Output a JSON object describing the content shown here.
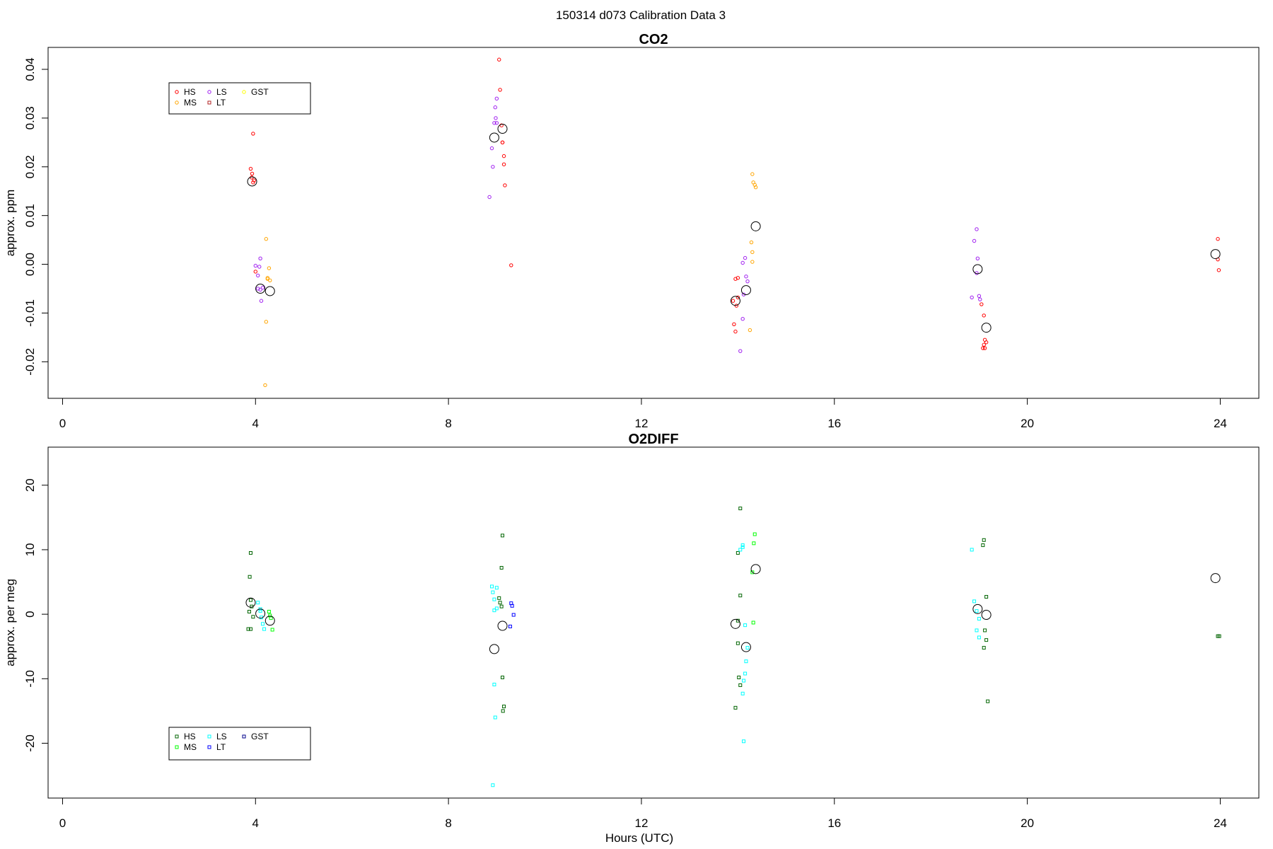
{
  "main_title": "150314   d073   Calibration Data 3",
  "chart_data": [
    {
      "type": "scatter",
      "title": "CO2",
      "ylabel": "approx. ppm",
      "xlabel": "",
      "xlim": [
        -0.3,
        24.8
      ],
      "ylim": [
        -0.0275,
        0.0445
      ],
      "x_ticks": [
        0,
        4,
        8,
        12,
        16,
        20,
        24
      ],
      "y_ticks": [
        -0.02,
        -0.01,
        0.0,
        0.01,
        0.02,
        0.03,
        0.04
      ],
      "y_tick_labels": [
        "-0.02",
        "-0.01",
        "0.00",
        "0.01",
        "0.02",
        "0.03",
        "0.04"
      ],
      "legend_position": "top-left",
      "legend": [
        {
          "name": "HS",
          "color": "#ff0000",
          "symbol": "circle"
        },
        {
          "name": "MS",
          "color": "#ffa500",
          "symbol": "circle"
        },
        {
          "name": "LS",
          "color": "#a020f0",
          "symbol": "circle"
        },
        {
          "name": "LT",
          "color": "#b22222",
          "symbol": "square"
        },
        {
          "name": "GST",
          "color": "#ffff00",
          "symbol": "circle"
        }
      ],
      "series": [
        {
          "name": "HS",
          "color": "#ff0000",
          "points": [
            [
              3.9,
              0.0196
            ],
            [
              3.93,
              0.0186
            ],
            [
              3.95,
              0.0268
            ],
            [
              3.92,
              0.0178
            ],
            [
              3.97,
              0.0172
            ],
            [
              3.95,
              0.0168
            ],
            [
              4.0,
              -0.0015
            ],
            [
              9.05,
              0.042
            ],
            [
              9.07,
              0.0358
            ],
            [
              9.1,
              0.0285
            ],
            [
              9.12,
              0.025
            ],
            [
              9.15,
              0.0222
            ],
            [
              9.15,
              0.0205
            ],
            [
              9.17,
              0.0162
            ],
            [
              9.12,
              0.025
            ],
            [
              9.3,
              -0.0002
            ],
            [
              13.9,
              -0.0075
            ],
            [
              13.92,
              -0.0123
            ],
            [
              13.95,
              -0.0138
            ],
            [
              13.97,
              -0.0085
            ],
            [
              14.0,
              -0.0068
            ],
            [
              14.0,
              -0.0028
            ],
            [
              13.95,
              -0.003
            ],
            [
              19.05,
              -0.0082
            ],
            [
              19.1,
              -0.0105
            ],
            [
              19.12,
              -0.0155
            ],
            [
              19.1,
              -0.0165
            ],
            [
              19.15,
              -0.016
            ],
            [
              19.08,
              -0.0172
            ],
            [
              19.12,
              -0.0172
            ],
            [
              23.95,
              0.0052
            ],
            [
              23.95,
              0.001
            ],
            [
              23.97,
              -0.0012
            ]
          ]
        },
        {
          "name": "MS",
          "color": "#ffa500",
          "points": [
            [
              4.22,
              0.0052
            ],
            [
              4.25,
              -0.0028
            ],
            [
              4.28,
              -0.0008
            ],
            [
              4.25,
              -0.003
            ],
            [
              4.3,
              -0.0033
            ],
            [
              4.22,
              -0.0118
            ],
            [
              4.2,
              -0.0248
            ],
            [
              14.3,
              0.0185
            ],
            [
              14.32,
              0.0168
            ],
            [
              14.35,
              0.0163
            ],
            [
              14.37,
              0.0158
            ],
            [
              14.3,
              0.0025
            ],
            [
              14.28,
              0.0045
            ],
            [
              14.25,
              -0.0135
            ],
            [
              14.3,
              0.0005
            ]
          ]
        },
        {
          "name": "LS",
          "color": "#a020f0",
          "points": [
            [
              4.0,
              -0.0003
            ],
            [
              4.05,
              -0.0023
            ],
            [
              4.1,
              0.0012
            ],
            [
              4.08,
              -0.0005
            ],
            [
              4.12,
              -0.0075
            ],
            [
              4.05,
              -0.005
            ],
            [
              4.1,
              -0.0052
            ],
            [
              4.15,
              -0.0048
            ],
            [
              8.85,
              0.0138
            ],
            [
              8.9,
              0.0238
            ],
            [
              8.92,
              0.02
            ],
            [
              8.95,
              0.029
            ],
            [
              8.97,
              0.0322
            ],
            [
              9.0,
              0.034
            ],
            [
              8.98,
              0.03
            ],
            [
              9.0,
              0.029
            ],
            [
              14.15,
              0.0013
            ],
            [
              14.1,
              0.0003
            ],
            [
              14.17,
              -0.0025
            ],
            [
              14.2,
              -0.0035
            ],
            [
              14.1,
              -0.0112
            ],
            [
              14.05,
              -0.0178
            ],
            [
              14.12,
              -0.0062
            ],
            [
              18.85,
              -0.0068
            ],
            [
              18.9,
              0.0048
            ],
            [
              18.95,
              0.0072
            ],
            [
              18.97,
              0.0012
            ],
            [
              19.0,
              -0.0065
            ],
            [
              19.02,
              -0.0072
            ],
            [
              18.95,
              -0.0018
            ]
          ]
        }
      ],
      "means": [
        [
          3.93,
          0.017
        ],
        [
          4.1,
          -0.005
        ],
        [
          4.3,
          -0.0055
        ],
        [
          8.95,
          0.026
        ],
        [
          9.12,
          0.0278
        ],
        [
          13.95,
          -0.0075
        ],
        [
          14.17,
          -0.0053
        ],
        [
          14.37,
          0.0078
        ],
        [
          18.97,
          -0.001
        ],
        [
          19.15,
          -0.013
        ],
        [
          23.9,
          0.0021
        ]
      ]
    },
    {
      "type": "scatter",
      "title": "O2DIFF",
      "ylabel": "approx. per meg",
      "xlabel": "Hours (UTC)",
      "xlim": [
        -0.3,
        24.8
      ],
      "ylim": [
        -28.5,
        25.9
      ],
      "x_ticks": [
        0,
        4,
        8,
        12,
        16,
        20,
        24
      ],
      "y_ticks": [
        -20,
        -10,
        0,
        10,
        20
      ],
      "y_tick_labels": [
        "-20",
        "-10",
        "0",
        "10",
        "20"
      ],
      "legend_position": "bottom-left",
      "legend": [
        {
          "name": "HS",
          "color": "#006400",
          "symbol": "square"
        },
        {
          "name": "MS",
          "color": "#00ff00",
          "symbol": "square"
        },
        {
          "name": "LS",
          "color": "#00ffff",
          "symbol": "square"
        },
        {
          "name": "LT",
          "color": "#0000ff",
          "symbol": "square"
        },
        {
          "name": "GST",
          "color": "#00008b",
          "symbol": "square"
        }
      ],
      "series": [
        {
          "name": "HS",
          "color": "#006400",
          "points": [
            [
              3.9,
              9.5
            ],
            [
              3.88,
              5.8
            ],
            [
              3.9,
              2.2
            ],
            [
              3.92,
              1.2
            ],
            [
              3.87,
              0.4
            ],
            [
              3.95,
              -0.4
            ],
            [
              3.9,
              -2.3
            ],
            [
              3.85,
              -2.3
            ],
            [
              9.1,
              7.2
            ],
            [
              9.12,
              12.2
            ],
            [
              9.05,
              2.5
            ],
            [
              9.07,
              1.8
            ],
            [
              9.1,
              1.2
            ],
            [
              9.12,
              -9.8
            ],
            [
              9.15,
              -14.3
            ],
            [
              9.13,
              -15.0
            ],
            [
              14.05,
              16.4
            ],
            [
              14.0,
              9.5
            ],
            [
              14.05,
              2.9
            ],
            [
              14.0,
              -1.0
            ],
            [
              14.0,
              -4.5
            ],
            [
              14.02,
              -9.8
            ],
            [
              14.05,
              -11.0
            ],
            [
              13.95,
              -14.5
            ],
            [
              19.1,
              11.5
            ],
            [
              19.08,
              10.7
            ],
            [
              19.15,
              2.7
            ],
            [
              19.12,
              -2.5
            ],
            [
              19.15,
              -4.0
            ],
            [
              19.1,
              -5.2
            ],
            [
              19.18,
              -13.5
            ],
            [
              23.95,
              -3.4
            ],
            [
              23.98,
              -3.4
            ]
          ]
        },
        {
          "name": "MS",
          "color": "#00ff00",
          "points": [
            [
              4.3,
              -0.2
            ],
            [
              4.35,
              -2.4
            ],
            [
              4.32,
              -0.6
            ],
            [
              4.28,
              0.4
            ],
            [
              14.35,
              12.4
            ],
            [
              14.33,
              11.0
            ],
            [
              14.3,
              6.5
            ],
            [
              14.32,
              -1.3
            ]
          ]
        },
        {
          "name": "LS",
          "color": "#00ffff",
          "points": [
            [
              4.05,
              1.8
            ],
            [
              4.1,
              0.5
            ],
            [
              4.12,
              -0.5
            ],
            [
              4.15,
              -1.5
            ],
            [
              4.18,
              -2.3
            ],
            [
              4.1,
              0.8
            ],
            [
              8.9,
              4.3
            ],
            [
              8.92,
              3.4
            ],
            [
              8.95,
              2.3
            ],
            [
              9.0,
              0.9
            ],
            [
              8.95,
              0.6
            ],
            [
              9.0,
              4.1
            ],
            [
              8.95,
              -10.9
            ],
            [
              8.97,
              -16.0
            ],
            [
              8.92,
              -26.5
            ],
            [
              14.05,
              10.0
            ],
            [
              14.1,
              10.7
            ],
            [
              14.1,
              10.4
            ],
            [
              14.15,
              -1.7
            ],
            [
              14.2,
              -5.2
            ],
            [
              14.17,
              -7.3
            ],
            [
              14.15,
              -9.2
            ],
            [
              14.12,
              -10.3
            ],
            [
              14.1,
              -12.3
            ],
            [
              14.12,
              -19.7
            ],
            [
              18.85,
              10.0
            ],
            [
              18.9,
              2.0
            ],
            [
              18.95,
              0.5
            ],
            [
              19.0,
              -0.7
            ],
            [
              18.95,
              -2.5
            ],
            [
              19.0,
              -3.6
            ]
          ]
        },
        {
          "name": "LT",
          "color": "#0000ff",
          "points": [
            [
              9.3,
              1.7
            ],
            [
              9.32,
              1.3
            ],
            [
              9.35,
              -0.1
            ],
            [
              9.28,
              -1.9
            ]
          ]
        }
      ],
      "means": [
        [
          3.9,
          1.8
        ],
        [
          4.1,
          0.1
        ],
        [
          4.3,
          -1.0
        ],
        [
          8.95,
          -5.4
        ],
        [
          9.12,
          -1.8
        ],
        [
          13.95,
          -1.5
        ],
        [
          14.17,
          -5.1
        ],
        [
          14.37,
          7.0
        ],
        [
          18.97,
          0.8
        ],
        [
          19.15,
          -0.1
        ],
        [
          23.9,
          5.6
        ]
      ]
    }
  ]
}
